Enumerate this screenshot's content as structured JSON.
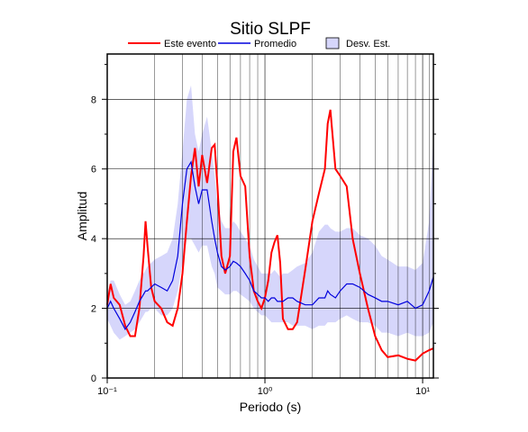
{
  "chart_data": {
    "type": "line",
    "title": "Sitio SLPF",
    "x_label": "Periodo (s)",
    "y_label": "Amplitud",
    "log_x": true,
    "grid": true,
    "legend": "top",
    "xlim": [
      0.1,
      11.7
    ],
    "ylim": [
      0,
      9.3
    ],
    "xticks": [
      {
        "value": 0.1,
        "label": "10⁻¹"
      },
      {
        "value": 1,
        "label": "10⁰"
      },
      {
        "value": 10,
        "label": "10¹"
      }
    ],
    "xminor": [
      0.2,
      0.3,
      0.4,
      0.5,
      0.6,
      0.7,
      0.8,
      0.9,
      2,
      3,
      4,
      5,
      6,
      7,
      8,
      9,
      11
    ],
    "yticks": [
      0,
      2,
      4,
      6,
      8
    ],
    "yminor": [
      1,
      3,
      5,
      7,
      9
    ],
    "x": [
      0.1,
      0.105,
      0.11,
      0.12,
      0.13,
      0.14,
      0.15,
      0.16,
      0.17,
      0.175,
      0.18,
      0.19,
      0.2,
      0.22,
      0.24,
      0.26,
      0.28,
      0.3,
      0.32,
      0.34,
      0.36,
      0.38,
      0.4,
      0.43,
      0.46,
      0.48,
      0.5,
      0.53,
      0.56,
      0.6,
      0.63,
      0.66,
      0.7,
      0.75,
      0.8,
      0.85,
      0.9,
      0.95,
      1.0,
      1.05,
      1.1,
      1.15,
      1.2,
      1.25,
      1.3,
      1.4,
      1.5,
      1.6,
      1.8,
      2.0,
      2.2,
      2.4,
      2.5,
      2.6,
      2.8,
      3.0,
      3.3,
      3.6,
      4.0,
      4.5,
      5,
      5.5,
      6,
      7,
      8,
      9,
      10,
      11,
      11.7
    ],
    "band": {
      "name": "Desv. Est.",
      "color": "#d6d6fb",
      "lower": [
        1.7,
        1.5,
        1.3,
        1.1,
        1.2,
        1.3,
        1.4,
        1.6,
        1.8,
        1.9,
        1.9,
        2.0,
        2.0,
        1.8,
        1.8,
        2.0,
        2.5,
        3.3,
        4.0,
        4.0,
        3.8,
        3.6,
        3.8,
        3.8,
        3.2,
        3.0,
        2.6,
        2.5,
        2.4,
        2.4,
        2.5,
        2.5,
        2.4,
        2.3,
        2.2,
        2.0,
        1.9,
        1.8,
        1.8,
        1.7,
        1.6,
        1.6,
        1.6,
        1.6,
        1.6,
        1.6,
        1.5,
        1.5,
        1.5,
        1.4,
        1.5,
        1.5,
        1.6,
        1.6,
        1.6,
        1.7,
        1.8,
        1.7,
        1.6,
        1.6,
        1.5,
        1.3,
        1.3,
        1.2,
        1.3,
        1.2,
        1.2,
        1.3,
        1.6
      ],
      "upper": [
        2.4,
        2.8,
        2.8,
        2.4,
        2.1,
        2.2,
        2.5,
        2.8,
        3.0,
        3.1,
        3.2,
        3.3,
        3.4,
        3.5,
        3.6,
        4.0,
        5.0,
        6.5,
        8.0,
        8.4,
        7.0,
        6.5,
        7.0,
        7.5,
        6.5,
        5.8,
        5.0,
        4.5,
        4.3,
        4.3,
        4.5,
        4.4,
        4.2,
        4.0,
        3.8,
        3.4,
        3.2,
        3.0,
        3.0,
        3.0,
        3.0,
        3.1,
        3.0,
        2.9,
        3.0,
        3.0,
        3.1,
        3.2,
        3.3,
        3.6,
        4.2,
        4.4,
        4.4,
        4.3,
        4.2,
        4.2,
        4.3,
        4.3,
        4.1,
        4.0,
        3.8,
        3.5,
        3.4,
        3.2,
        3.2,
        3.1,
        3.3,
        4.5,
        7.0
      ]
    },
    "series": [
      {
        "name": "Este evento",
        "color": "#ff0000",
        "values": [
          2.1,
          2.7,
          2.3,
          2.1,
          1.5,
          1.2,
          1.2,
          2.0,
          3.5,
          4.5,
          3.8,
          2.6,
          2.2,
          2.0,
          1.6,
          1.5,
          2.0,
          3.0,
          4.5,
          5.8,
          6.6,
          5.5,
          6.4,
          5.6,
          6.6,
          6.7,
          5.5,
          3.5,
          3.0,
          3.5,
          6.5,
          6.9,
          5.8,
          5.5,
          3.5,
          2.5,
          2.2,
          2.0,
          2.3,
          2.8,
          3.6,
          3.9,
          4.1,
          3.3,
          1.7,
          1.4,
          1.4,
          1.6,
          3.1,
          4.5,
          5.3,
          6.0,
          7.3,
          7.7,
          6.0,
          5.8,
          5.5,
          4.0,
          3.0,
          2.0,
          1.2,
          0.8,
          0.6,
          0.65,
          0.55,
          0.5,
          0.7,
          0.8,
          0.85
        ]
      },
      {
        "name": "Promedio",
        "color": "#0000dd",
        "values": [
          2.0,
          2.2,
          2.0,
          1.7,
          1.4,
          1.6,
          1.9,
          2.2,
          2.4,
          2.5,
          2.5,
          2.6,
          2.7,
          2.6,
          2.5,
          2.8,
          3.5,
          5.0,
          6.0,
          6.2,
          5.5,
          5.0,
          5.4,
          5.4,
          4.5,
          4.0,
          3.6,
          3.2,
          3.1,
          3.2,
          3.35,
          3.3,
          3.2,
          3.0,
          2.8,
          2.5,
          2.4,
          2.3,
          2.3,
          2.2,
          2.3,
          2.3,
          2.2,
          2.2,
          2.2,
          2.3,
          2.3,
          2.2,
          2.1,
          2.1,
          2.3,
          2.3,
          2.5,
          2.4,
          2.3,
          2.5,
          2.7,
          2.7,
          2.6,
          2.4,
          2.3,
          2.2,
          2.2,
          2.1,
          2.2,
          2.0,
          2.1,
          2.5,
          2.9
        ]
      }
    ]
  }
}
